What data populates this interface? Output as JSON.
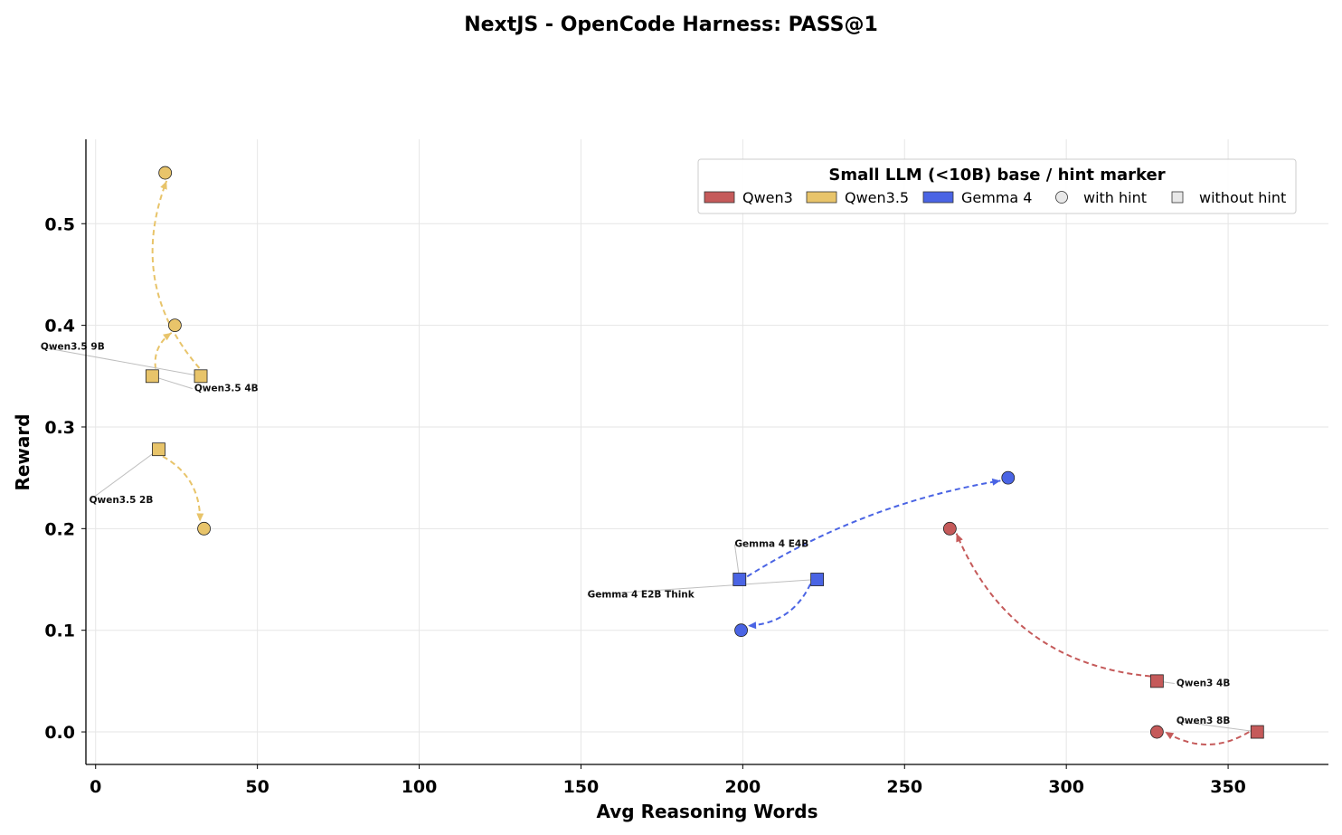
{
  "chart_data": {
    "type": "scatter",
    "title": "NextJS - OpenCode Harness: PASS@1",
    "xlabel": "Avg Reasoning Words",
    "ylabel": "Reward",
    "xlim": [
      -3,
      381
    ],
    "ylim": [
      -0.032,
      0.583
    ],
    "xticks": [
      0,
      50,
      100,
      150,
      200,
      250,
      300,
      350
    ],
    "yticks": [
      0.0,
      0.1,
      0.2,
      0.3,
      0.4,
      0.5
    ],
    "ytick_labels": [
      "0.0",
      "0.1",
      "0.2",
      "0.3",
      "0.4",
      "0.5"
    ],
    "grid": true,
    "colors": {
      "Qwen3": "#c55a5a",
      "Qwen3.5": "#e8c46a",
      "Gemma 4": "#4a64e4"
    },
    "legend": {
      "title": "Small LLM (<10B) base / hint marker",
      "placement": "top-right",
      "entries": [
        {
          "label": "Qwen3",
          "kind": "patch",
          "family": "Qwen3"
        },
        {
          "label": "Qwen3.5",
          "kind": "patch",
          "family": "Qwen3.5"
        },
        {
          "label": "Gemma 4",
          "kind": "patch",
          "family": "Gemma 4"
        },
        {
          "label": "with hint",
          "kind": "circle"
        },
        {
          "label": "without hint",
          "kind": "square"
        }
      ]
    },
    "models": [
      {
        "label": "Qwen3 4B",
        "family": "Qwen3",
        "without_hint": {
          "x": 328,
          "y": 0.05
        },
        "with_hint": {
          "x": 264,
          "y": 0.2
        },
        "curvature": 0.3,
        "label_pos": "right-upper"
      },
      {
        "label": "Qwen3 8B",
        "family": "Qwen3",
        "without_hint": {
          "x": 359,
          "y": 0.0
        },
        "with_hint": {
          "x": 328,
          "y": 0.0
        },
        "curvature": 0.3,
        "label_pos": "left-upper"
      },
      {
        "label": "Qwen3.5 9B",
        "family": "Qwen3.5",
        "without_hint": {
          "x": 32.5,
          "y": 0.35
        },
        "with_hint": {
          "x": 21.5,
          "y": 0.55
        },
        "curvature": 0.3,
        "label_pos": "far-left"
      },
      {
        "label": "Qwen3.5 4B",
        "family": "Qwen3.5",
        "without_hint": {
          "x": 17.5,
          "y": 0.35
        },
        "with_hint": {
          "x": 24.5,
          "y": 0.4
        },
        "curvature": 0.3,
        "label_pos": "right-below"
      },
      {
        "label": "Qwen3.5 2B",
        "family": "Qwen3.5",
        "without_hint": {
          "x": 19.5,
          "y": 0.278
        },
        "with_hint": {
          "x": 33.5,
          "y": 0.2
        },
        "curvature": 0.3,
        "label_pos": "left-below"
      },
      {
        "label": "Gemma 4 E4B",
        "family": "Gemma 4",
        "without_hint": {
          "x": 199,
          "y": 0.15
        },
        "with_hint": {
          "x": 282,
          "y": 0.25
        },
        "curvature": 0.1,
        "label_pos": "above"
      },
      {
        "label": "Gemma 4 E2B Think",
        "family": "Gemma 4",
        "without_hint": {
          "x": 223,
          "y": 0.15
        },
        "with_hint": {
          "x": 199.5,
          "y": 0.1
        },
        "curvature": 0.3,
        "label_pos": "left-below"
      }
    ],
    "annotations": [
      {
        "text": "Qwen3 4B",
        "point": {
          "x": 328,
          "y": 0.05
        },
        "text_at": {
          "x": 334,
          "y": 0.045
        },
        "anchor": "start"
      },
      {
        "text": "Qwen3 8B",
        "point": {
          "x": 359,
          "y": 0.0
        },
        "text_at": {
          "x": 334,
          "y": 0.008
        },
        "anchor": "start"
      },
      {
        "text": "Qwen3.5 9B",
        "point": {
          "x": 32.5,
          "y": 0.35
        },
        "text_at": {
          "x": -17,
          "y": 0.376
        },
        "anchor": "start"
      },
      {
        "text": "Qwen3.5 4B",
        "point": {
          "x": 17.5,
          "y": 0.35
        },
        "text_at": {
          "x": 30.5,
          "y": 0.335
        },
        "anchor": "start"
      },
      {
        "text": "Qwen3.5 2B",
        "point": {
          "x": 19.5,
          "y": 0.278
        },
        "text_at": {
          "x": -2,
          "y": 0.225
        },
        "anchor": "start"
      },
      {
        "text": "Gemma 4 E4B",
        "point": {
          "x": 199,
          "y": 0.15
        },
        "text_at": {
          "x": 197.5,
          "y": 0.182
        },
        "anchor": "start"
      },
      {
        "text": "Gemma 4 E2B Think",
        "point": {
          "x": 223,
          "y": 0.15
        },
        "text_at": {
          "x": 152,
          "y": 0.132
        },
        "anchor": "start"
      }
    ]
  }
}
